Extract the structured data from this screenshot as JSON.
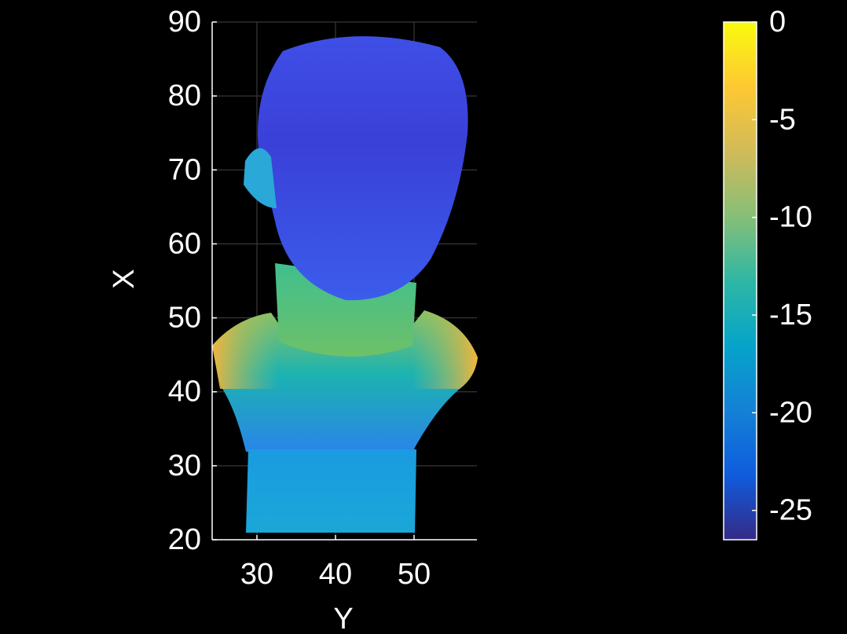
{
  "chart_data": {
    "type": "image",
    "x_label": "Y",
    "y_label": "X",
    "xlim": [
      24.3,
      58
    ],
    "xticks": [
      30,
      40,
      50
    ],
    "ylim": [
      20,
      90
    ],
    "yticks": [
      20,
      30,
      40,
      50,
      60,
      70,
      80,
      90
    ],
    "grid": true,
    "colormap": "parula",
    "clim": [
      -26.5,
      0
    ],
    "cticks": [
      0,
      -5,
      -10,
      -15,
      -20,
      -25
    ]
  }
}
